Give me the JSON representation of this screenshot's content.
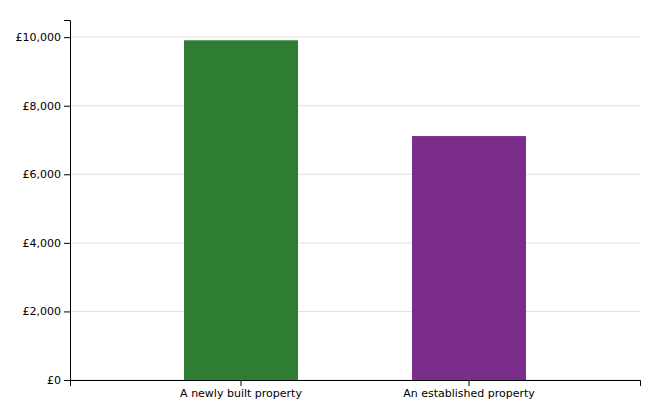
{
  "chart_data": {
    "type": "bar",
    "categories": [
      "A newly built property",
      "An established property"
    ],
    "values": [
      9908,
      7115
    ],
    "colors": [
      "#2e7d32",
      "#7B2D8B"
    ],
    "ylim": [
      0,
      10500
    ],
    "yticks": [
      {
        "value": 0,
        "label": "£0"
      },
      {
        "value": 2000,
        "label": "£2,000"
      },
      {
        "value": 4000,
        "label": "£4,000"
      },
      {
        "value": 6000,
        "label": "£6,000"
      },
      {
        "value": 8000,
        "label": "£8,000"
      },
      {
        "value": 10000,
        "label": "£10,000"
      }
    ],
    "grid": true
  }
}
